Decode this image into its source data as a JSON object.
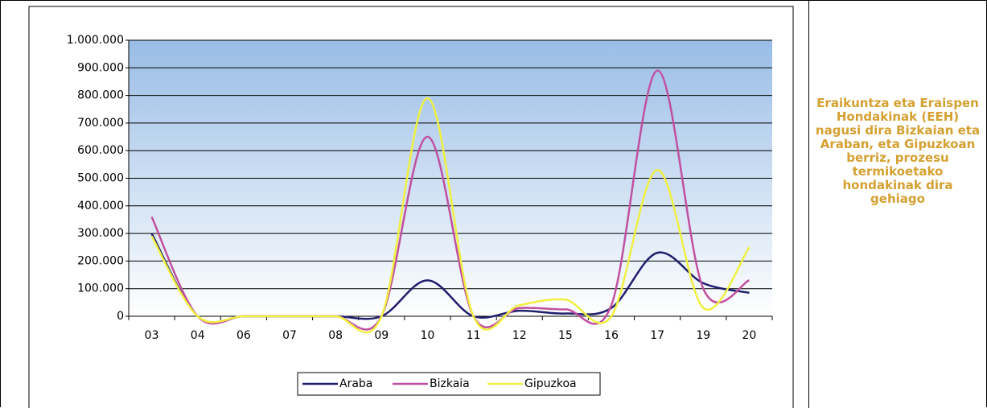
{
  "chart_data": {
    "type": "line",
    "categories": [
      "03",
      "04",
      "06",
      "07",
      "08",
      "09",
      "10",
      "11",
      "12",
      "15",
      "16",
      "17",
      "19",
      "20"
    ],
    "series": [
      {
        "name": "Araba",
        "color": "#1f1f6e",
        "values": [
          300000,
          0,
          0,
          0,
          0,
          0,
          130000,
          0,
          20000,
          10000,
          30000,
          230000,
          120000,
          85000
        ]
      },
      {
        "name": "Bizkaia",
        "color": "#c050a0",
        "values": [
          360000,
          0,
          0,
          0,
          0,
          0,
          650000,
          0,
          30000,
          25000,
          40000,
          890000,
          100000,
          130000
        ]
      },
      {
        "name": "Gipuzkoa",
        "color": "#f0f040",
        "values": [
          290000,
          0,
          0,
          0,
          0,
          0,
          790000,
          0,
          40000,
          60000,
          0,
          530000,
          30000,
          250000
        ]
      }
    ],
    "ylim": [
      0,
      1000000
    ],
    "yticks": [
      0,
      {
        "value": 100000,
        "label": "100.000"
      },
      {
        "value": 200000,
        "label": "200.000"
      },
      {
        "value": 300000,
        "label": "300.000"
      },
      {
        "value": 400000,
        "label": "400.000"
      },
      {
        "value": 500000,
        "label": "500.000"
      },
      {
        "value": 600000,
        "label": "600.000"
      },
      {
        "value": 700000,
        "label": "700.000"
      },
      {
        "value": 800000,
        "label": "800.000"
      },
      {
        "value": 900000,
        "label": "900.000"
      },
      {
        "value": 1000000,
        "label": "1.000.000"
      }
    ],
    "grid": true,
    "legend": "bottom"
  },
  "note": "Eraikuntza eta Eraispen Hondakinak (EEH) nagusi dira Bizkaian eta Araban, eta Gipuzkoan berriz, prozesu termikoetako hondakinak dira gehiago"
}
